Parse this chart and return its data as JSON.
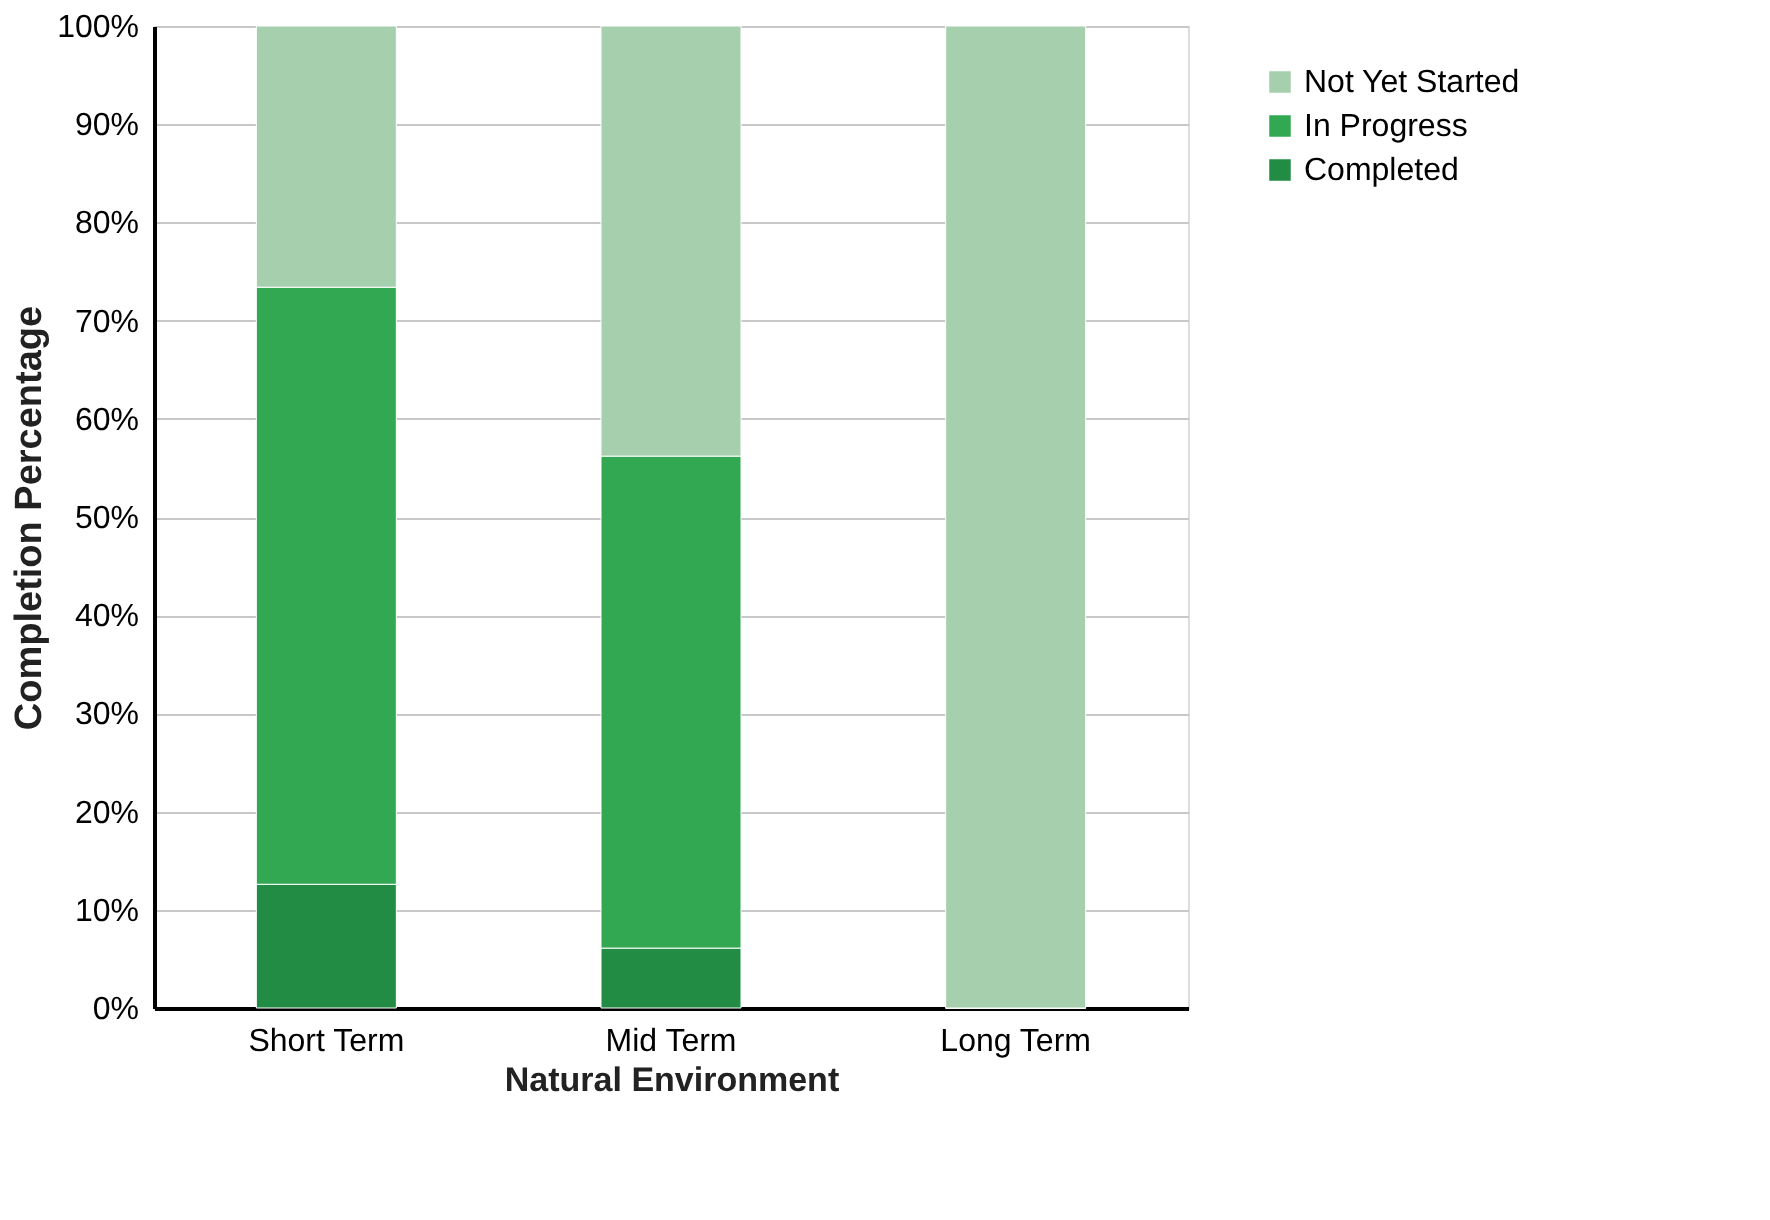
{
  "chart_data": {
    "type": "bar",
    "stacked": true,
    "xlabel": "Natural Environment",
    "ylabel": "Completion Percentage",
    "categories": [
      "Short Term",
      "Mid Term",
      "Long Term"
    ],
    "series": [
      {
        "name": "Completed",
        "color": "#228b44",
        "values": [
          12.6,
          6.1,
          0
        ]
      },
      {
        "name": "In Progress",
        "color": "#33a853",
        "values": [
          60.8,
          50.1,
          0
        ]
      },
      {
        "name": "Not Yet Started",
        "color": "#a6cfae",
        "values": [
          26.6,
          43.8,
          100
        ]
      }
    ],
    "ylim": [
      0,
      100
    ],
    "yticks": [
      {
        "value": 0,
        "label": "0%"
      },
      {
        "value": 10,
        "label": "10%"
      },
      {
        "value": 20,
        "label": "20%"
      },
      {
        "value": 30,
        "label": "30%"
      },
      {
        "value": 40,
        "label": "40%"
      },
      {
        "value": 50,
        "label": "50%"
      },
      {
        "value": 60,
        "label": "60%"
      },
      {
        "value": 70,
        "label": "70%"
      },
      {
        "value": 80,
        "label": "80%"
      },
      {
        "value": 90,
        "label": "90%"
      },
      {
        "value": 100,
        "label": "100%"
      }
    ],
    "grid": "y",
    "legend": "right"
  }
}
